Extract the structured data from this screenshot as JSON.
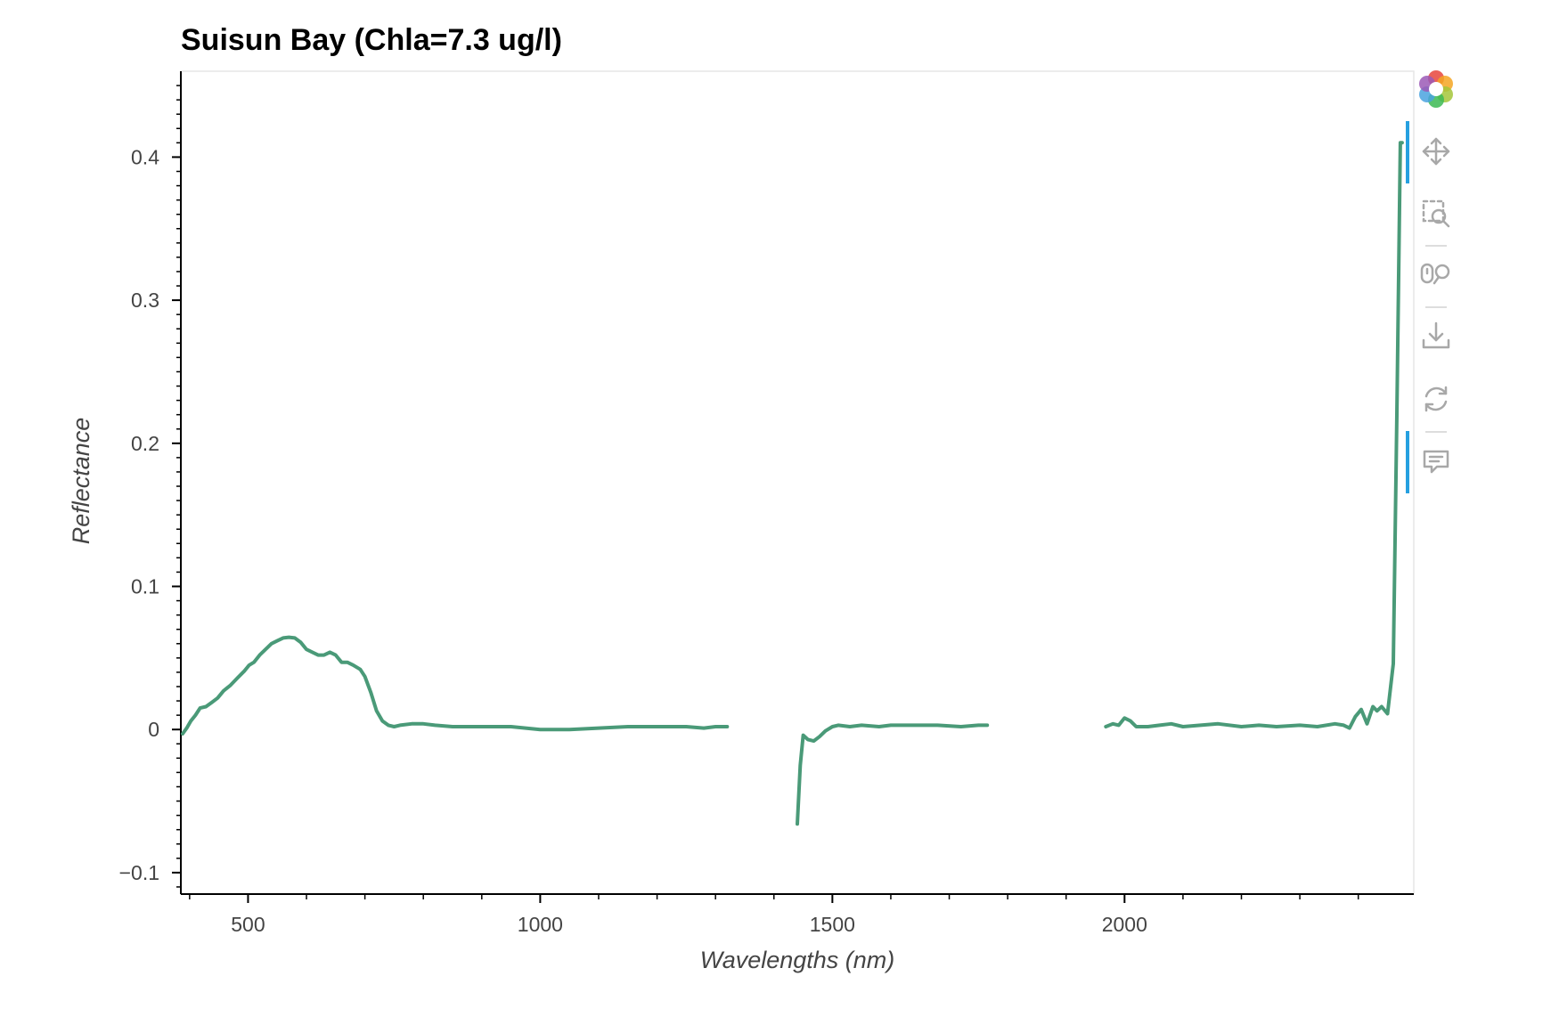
{
  "chart_data": {
    "type": "line",
    "title": "Suisun Bay (Chla=7.3 ug/l)",
    "xlabel": "Wavelengths (nm)",
    "ylabel": "Reflectance",
    "xlim": [
      385,
      2495
    ],
    "ylim": [
      -0.115,
      0.46
    ],
    "x_ticks": [
      500,
      1000,
      1500,
      2000
    ],
    "x_tick_labels": [
      "500",
      "1000",
      "1500",
      "2000"
    ],
    "y_ticks": [
      -0.1,
      0,
      0.1,
      0.2,
      0.3,
      0.4
    ],
    "y_tick_labels": [
      "−0.1",
      "0",
      "0.1",
      "0.2",
      "0.3",
      "0.4"
    ],
    "grid": false,
    "line_color": "#4a9a78",
    "series": [
      {
        "segments": [
          [
            [
              388,
              -0.003
            ],
            [
              395,
              0.001
            ],
            [
              402,
              0.006
            ],
            [
              410,
              0.01
            ],
            [
              418,
              0.015
            ],
            [
              428,
              0.016
            ],
            [
              438,
              0.019
            ],
            [
              448,
              0.022
            ],
            [
              458,
              0.027
            ],
            [
              470,
              0.031
            ],
            [
              482,
              0.036
            ],
            [
              494,
              0.041
            ],
            [
              502,
              0.045
            ],
            [
              510,
              0.047
            ],
            [
              520,
              0.052
            ],
            [
              530,
              0.056
            ],
            [
              540,
              0.06
            ],
            [
              550,
              0.062
            ],
            [
              560,
              0.064
            ],
            [
              570,
              0.0645
            ],
            [
              580,
              0.064
            ],
            [
              590,
              0.061
            ],
            [
              600,
              0.056
            ],
            [
              610,
              0.054
            ],
            [
              620,
              0.052
            ],
            [
              630,
              0.052
            ],
            [
              640,
              0.054
            ],
            [
              650,
              0.052
            ],
            [
              660,
              0.047
            ],
            [
              670,
              0.047
            ],
            [
              680,
              0.045
            ],
            [
              692,
              0.042
            ],
            [
              700,
              0.037
            ],
            [
              710,
              0.026
            ],
            [
              720,
              0.013
            ],
            [
              730,
              0.006
            ],
            [
              740,
              0.003
            ],
            [
              750,
              0.002
            ],
            [
              760,
              0.003
            ],
            [
              780,
              0.004
            ],
            [
              800,
              0.004
            ],
            [
              820,
              0.003
            ],
            [
              850,
              0.002
            ],
            [
              900,
              0.002
            ],
            [
              950,
              0.002
            ],
            [
              1000,
              0.0
            ],
            [
              1050,
              0.0
            ],
            [
              1100,
              0.001
            ],
            [
              1150,
              0.002
            ],
            [
              1200,
              0.002
            ],
            [
              1250,
              0.002
            ],
            [
              1280,
              0.001
            ],
            [
              1300,
              0.002
            ],
            [
              1320,
              0.002
            ]
          ],
          [
            [
              1440,
              -0.066
            ],
            [
              1445,
              -0.025
            ],
            [
              1450,
              -0.004
            ],
            [
              1458,
              -0.007
            ],
            [
              1468,
              -0.008
            ],
            [
              1478,
              -0.005
            ],
            [
              1488,
              -0.001
            ],
            [
              1500,
              0.002
            ],
            [
              1510,
              0.003
            ],
            [
              1530,
              0.002
            ],
            [
              1550,
              0.003
            ],
            [
              1580,
              0.002
            ],
            [
              1600,
              0.003
            ],
            [
              1640,
              0.003
            ],
            [
              1680,
              0.003
            ],
            [
              1720,
              0.002
            ],
            [
              1750,
              0.003
            ],
            [
              1765,
              0.003
            ]
          ],
          [
            [
              1968,
              0.002
            ],
            [
              1980,
              0.004
            ],
            [
              1990,
              0.003
            ],
            [
              2000,
              0.008
            ],
            [
              2010,
              0.006
            ],
            [
              2020,
              0.002
            ],
            [
              2040,
              0.002
            ],
            [
              2060,
              0.003
            ],
            [
              2080,
              0.004
            ],
            [
              2100,
              0.002
            ],
            [
              2130,
              0.003
            ],
            [
              2160,
              0.004
            ],
            [
              2200,
              0.002
            ],
            [
              2230,
              0.003
            ],
            [
              2260,
              0.002
            ],
            [
              2300,
              0.003
            ],
            [
              2330,
              0.002
            ],
            [
              2360,
              0.004
            ],
            [
              2375,
              0.003
            ],
            [
              2385,
              0.001
            ],
            [
              2395,
              0.009
            ],
            [
              2405,
              0.014
            ],
            [
              2415,
              0.004
            ],
            [
              2425,
              0.016
            ],
            [
              2432,
              0.013
            ],
            [
              2440,
              0.016
            ],
            [
              2450,
              0.011
            ],
            [
              2460,
              0.046
            ],
            [
              2466,
              0.22
            ],
            [
              2472,
              0.41
            ],
            [
              2475,
              0.41
            ]
          ]
        ]
      }
    ]
  },
  "toolbar": {
    "tools": [
      {
        "name": "bokeh-logo-icon"
      },
      {
        "name": "pan-icon",
        "active": true
      },
      {
        "name": "box-zoom-icon"
      },
      {
        "name": "wheel-zoom-icon"
      },
      {
        "name": "save-icon"
      },
      {
        "name": "reset-icon"
      },
      {
        "name": "hover-icon",
        "active": true
      }
    ]
  }
}
